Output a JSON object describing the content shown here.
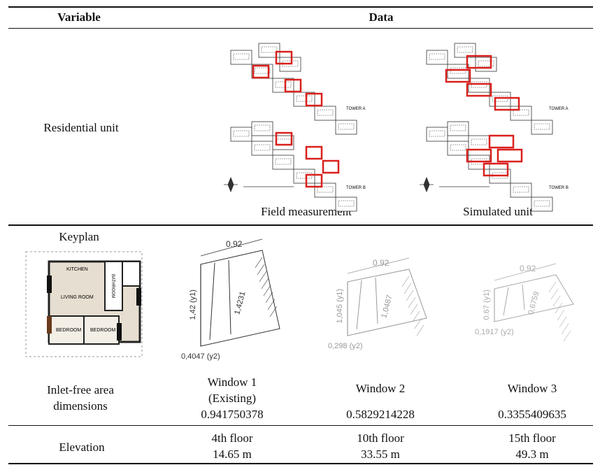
{
  "header": {
    "variable": "Variable",
    "data": "Data"
  },
  "residential": {
    "label": "Residential unit",
    "images": [
      {
        "caption": "Field measurement",
        "tower_a": "TOWER A",
        "tower_b": "TOWER B"
      },
      {
        "caption": "Simulated unit",
        "tower_a": "TOWER A",
        "tower_b": "TOWER B"
      }
    ]
  },
  "keyplan": {
    "label": "Keyplan",
    "kitchen": "KITCHEN",
    "living": "LIVING ROOM",
    "bathroom": "BATHROOM",
    "bedroom_1": "BEDROOM",
    "bedroom_2": "BEDROOM"
  },
  "inlet": {
    "label_line1": "Inlet-free area",
    "label_line2": "dimensions",
    "windows": [
      {
        "name": "Window 1",
        "note": "(Existing)",
        "area": "0.941750378",
        "width": "0.92",
        "height": "1,42 (y1)",
        "diagonal": "1,4231",
        "bottom": "0,4047 (y2)"
      },
      {
        "name": "Window 2",
        "area": "0.5829214228",
        "width": "0.92",
        "height": "1,045 (y1)",
        "diagonal": "1,0487",
        "bottom": "0,298 (y2)"
      },
      {
        "name": "Window 3",
        "area": "0.3355409635",
        "width": "0.92",
        "height": "0.67 (y1)",
        "diagonal": "0,6759",
        "bottom": "0,1917 (y2)"
      }
    ]
  },
  "elevation": {
    "label": "Elevation",
    "floors": [
      {
        "floor": "4th floor",
        "height": "14.65 m"
      },
      {
        "floor": "10th floor",
        "height": "33.55 m"
      },
      {
        "floor": "15th floor",
        "height": "49.3 m"
      }
    ]
  }
}
